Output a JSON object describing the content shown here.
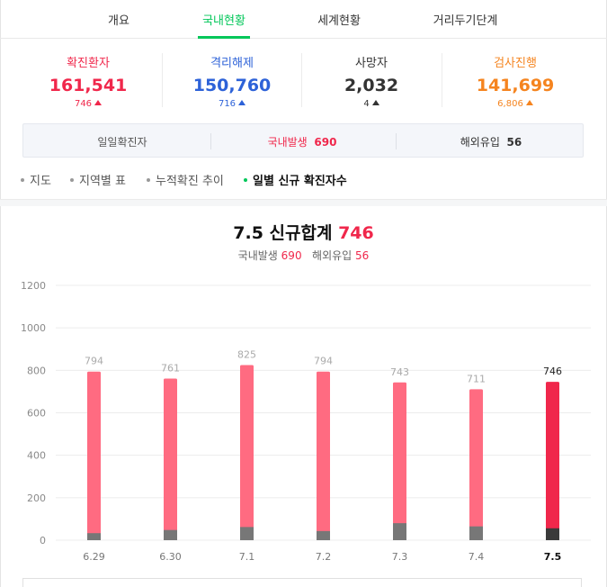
{
  "tabs": [
    {
      "label": "개요",
      "active": false
    },
    {
      "label": "국내현황",
      "active": true
    },
    {
      "label": "세계현황",
      "active": false
    },
    {
      "label": "거리두기단계",
      "active": false
    }
  ],
  "stats": [
    {
      "label": "확진환자",
      "value": "161,541",
      "delta": "746",
      "color": "#f0274b"
    },
    {
      "label": "격리해제",
      "value": "150,760",
      "delta": "716",
      "color": "#2d62d8"
    },
    {
      "label": "사망자",
      "value": "2,032",
      "delta": "4",
      "color": "#333333"
    },
    {
      "label": "검사진행",
      "value": "141,699",
      "delta": "6,806",
      "color": "#f5841f"
    }
  ],
  "daily": {
    "label": "일일확진자",
    "domestic_label": "국내발생",
    "domestic_value": "690",
    "overseas_label": "해외유입",
    "overseas_value": "56"
  },
  "subnav": [
    {
      "label": "지도",
      "active": false
    },
    {
      "label": "지역별 표",
      "active": false
    },
    {
      "label": "누적확진 추이",
      "active": false
    },
    {
      "label": "일별 신규 확진자수",
      "active": true
    }
  ],
  "chart_header": {
    "title_prefix": "7.5 신규합계",
    "title_total": "746",
    "domestic_label": "국내발생",
    "domestic_value": "690",
    "overseas_label": "해외유입",
    "overseas_value": "56"
  },
  "colors": {
    "accent": "#03c75a",
    "bar_total": "#ff6b81",
    "bar_total_highlight": "#f0274b",
    "bar_overseas": "#777777",
    "bar_overseas_highlight": "#3a3a3a"
  },
  "chart_data": {
    "type": "bar",
    "categories": [
      "6.29",
      "6.30",
      "7.1",
      "7.2",
      "7.3",
      "7.4",
      "7.5"
    ],
    "series": [
      {
        "values": [
          794,
          761,
          825,
          794,
          743,
          711,
          746
        ]
      },
      {
        "values": [
          33,
          48,
          62,
          43,
          80,
          65,
          56
        ]
      }
    ],
    "data_labels": [
      "794",
      "761",
      "825",
      "794",
      "743",
      "711",
      "746"
    ],
    "highlight_index": 6,
    "yticks": [
      "0",
      "200",
      "400",
      "600",
      "800",
      "1000",
      "1200"
    ],
    "ylim": [
      0,
      1200
    ],
    "grid": true
  }
}
